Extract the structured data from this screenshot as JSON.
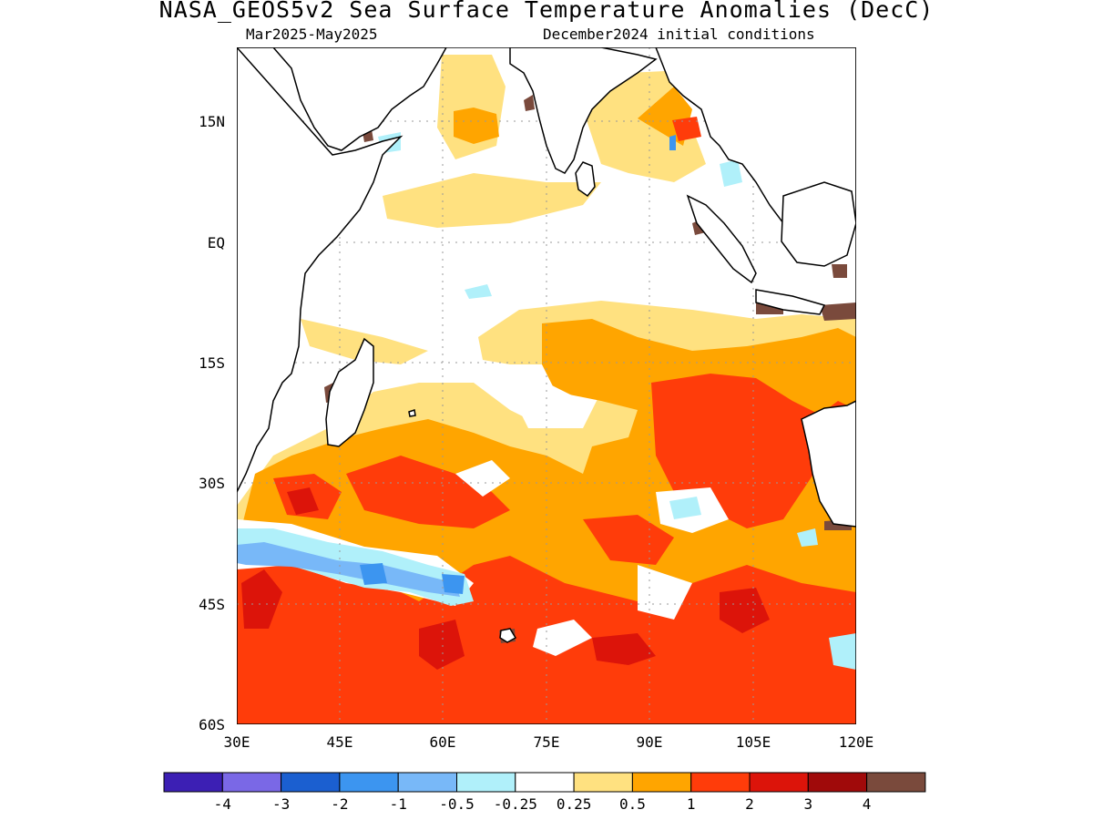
{
  "title": "NASA_GEOS5v2 Sea Surface Temperature Anomalies (DecC)",
  "period": "Mar2025-May2025",
  "init": "December2024 initial conditions",
  "lon_ticks": [
    "30E",
    "45E",
    "60E",
    "75E",
    "90E",
    "105E",
    "120E"
  ],
  "lat_ticks": [
    "15N",
    "EQ",
    "15S",
    "30S",
    "45S",
    "60S"
  ],
  "colorbar": {
    "colors": [
      "#3c1fb4",
      "#7a68e6",
      "#1b5fd0",
      "#3c95f0",
      "#78b8f8",
      "#b0f0fa",
      "#ffffff",
      "#ffe180",
      "#ffa500",
      "#ff3c0a",
      "#dc140a",
      "#a00a0a",
      "#7a4a3c"
    ],
    "labels": [
      "-4",
      "-3",
      "-2",
      "-1",
      "-0.5",
      "-0.25",
      "0.25",
      "0.5",
      "1",
      "2",
      "3",
      "4"
    ]
  },
  "palette": {
    "ocean": "#ffffff",
    "light_yellow": "#ffe180",
    "orange": "#ffa500",
    "red_orange": "#ff3c0a",
    "red": "#dc140a",
    "dark_red": "#a00a0a",
    "light_blue": "#b0f0fa",
    "sky_blue": "#78b8f8",
    "blue": "#3c95f0",
    "brown": "#7a4a3c"
  }
}
